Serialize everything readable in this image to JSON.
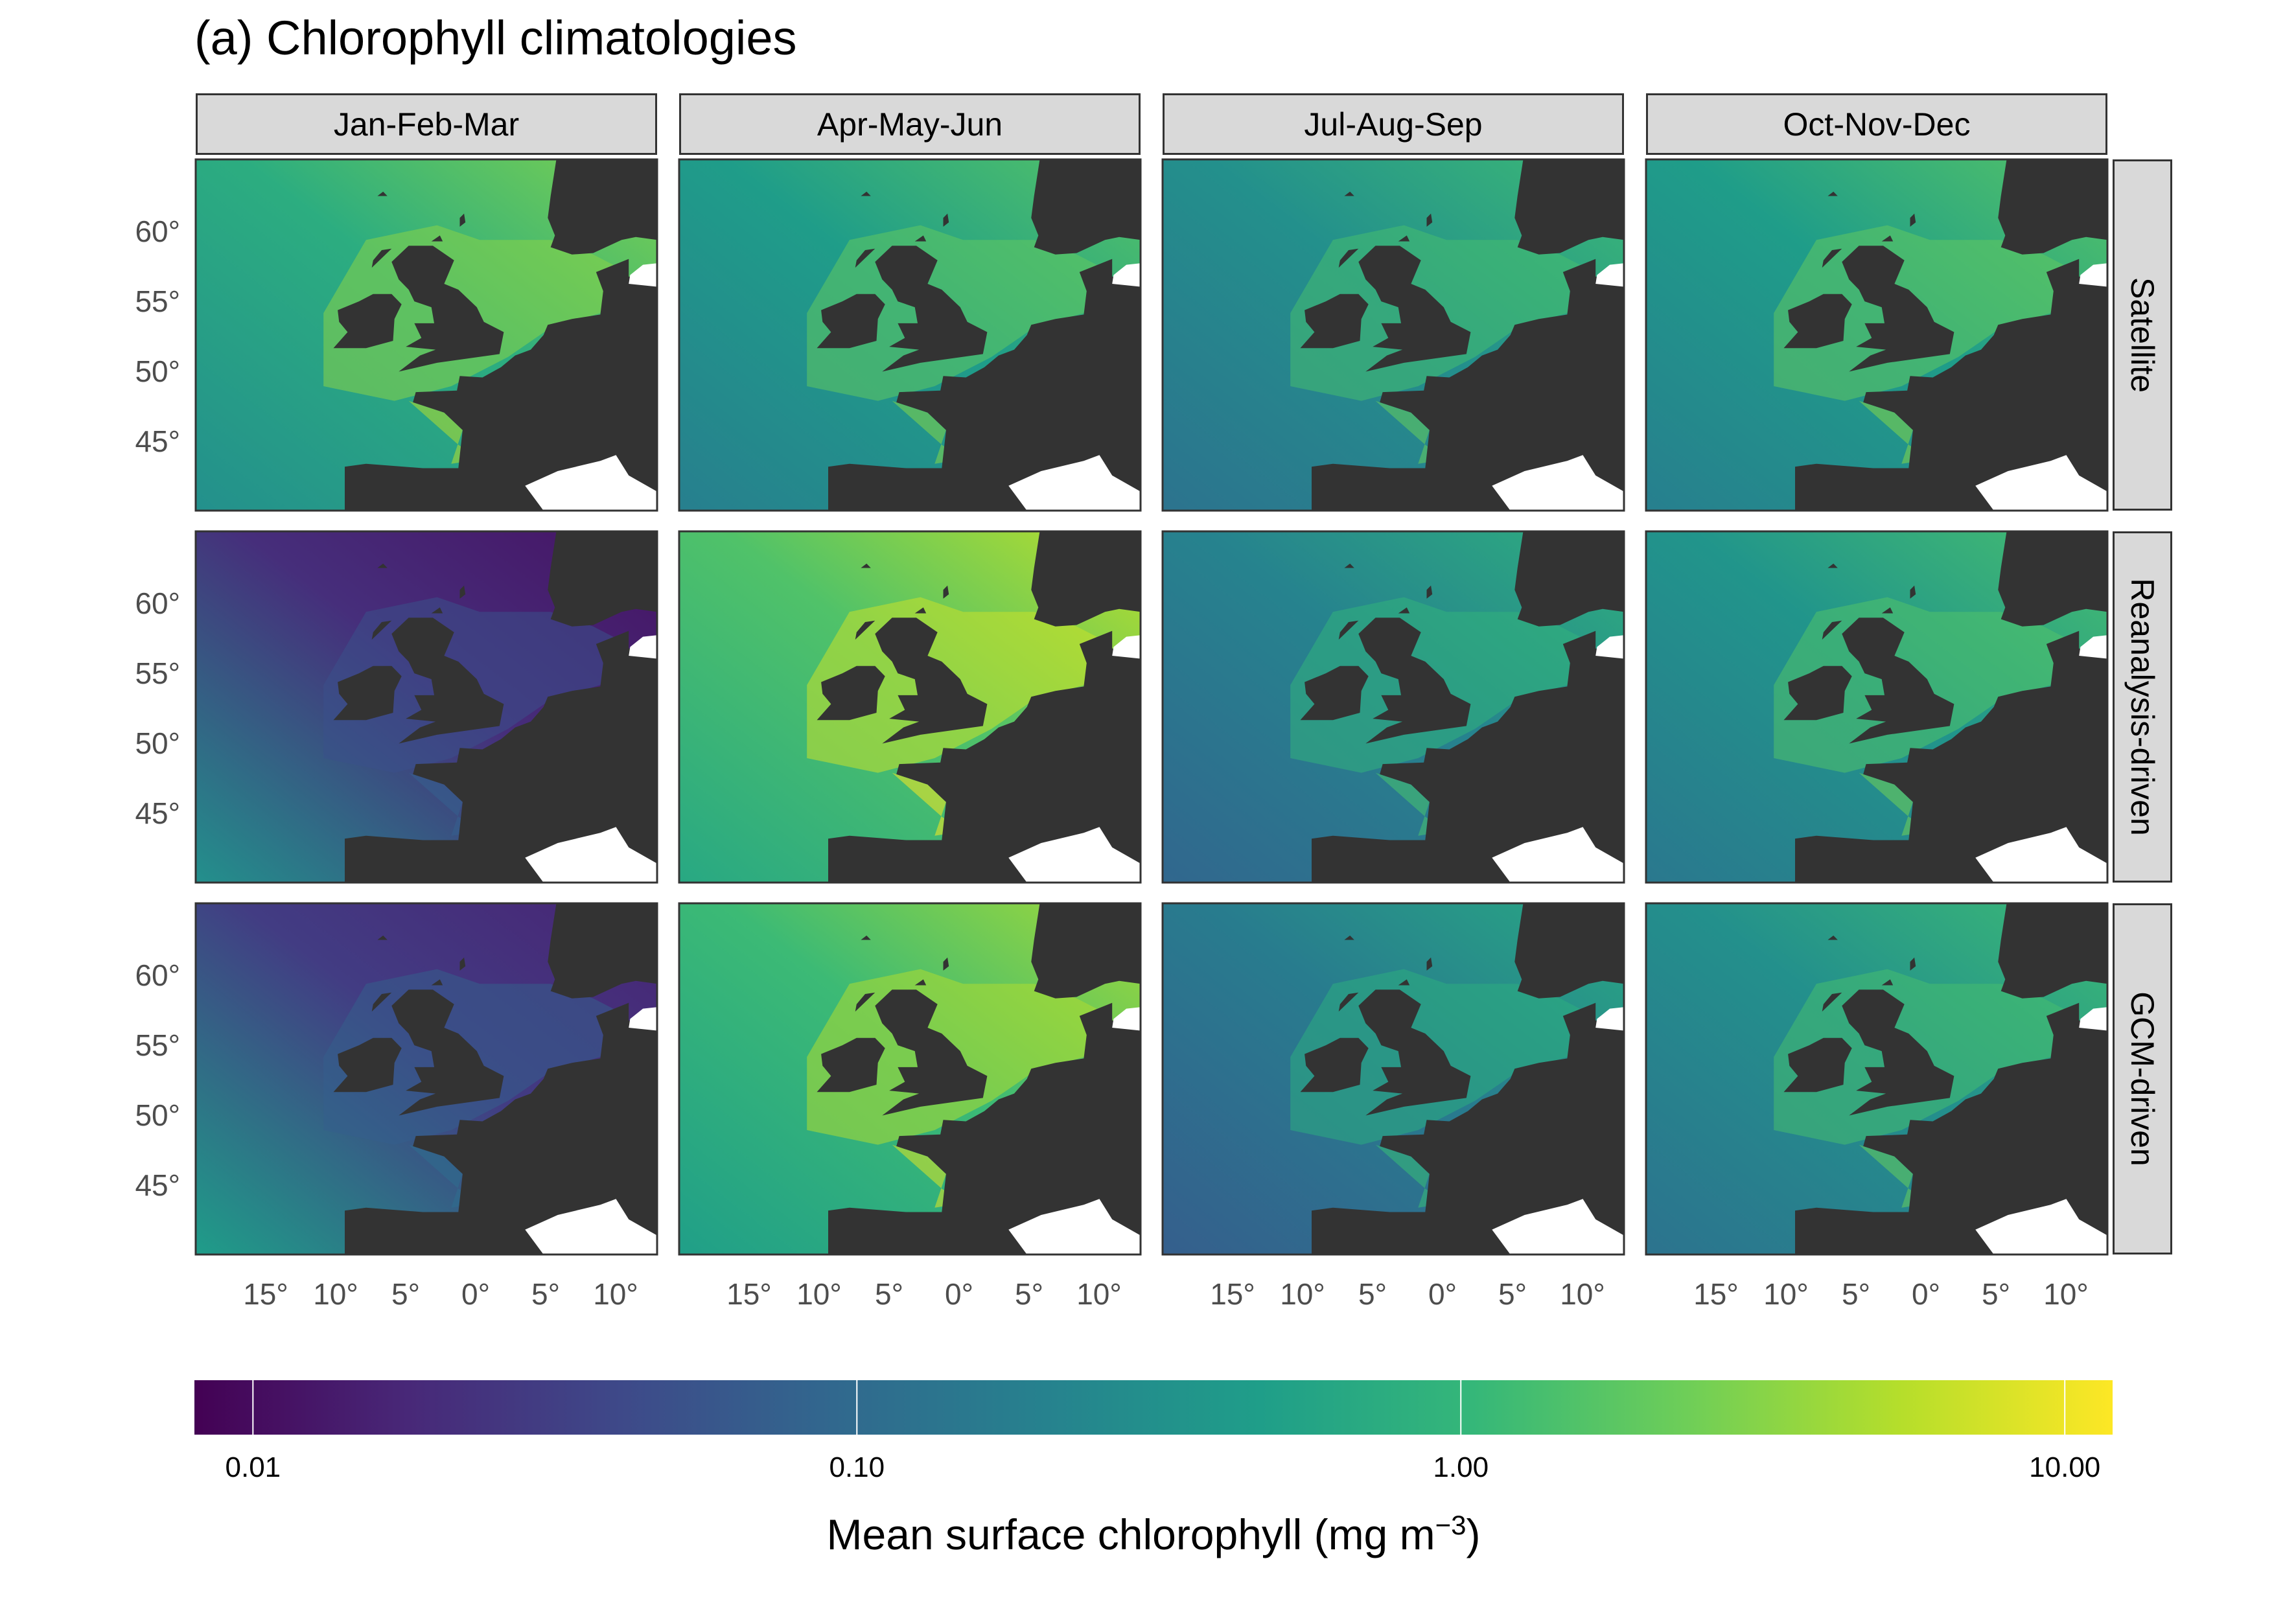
{
  "title": "(a) Chlorophyll climatologies",
  "columns": [
    "Jan-Feb-Mar",
    "Apr-May-Jun",
    "Jul-Aug-Sep",
    "Oct-Nov-Dec"
  ],
  "rows": [
    "Satellite",
    "Reanalysis-driven",
    "GCM-driven"
  ],
  "y_ticks": [
    "60°",
    "55°",
    "50°",
    "45°"
  ],
  "x_ticks": [
    "15°",
    "10°",
    "5°",
    "0°",
    "5°",
    "10°"
  ],
  "colorbar": {
    "scale": "log",
    "range": [
      0.008,
      12
    ],
    "ticks": [
      "0.01",
      "0.10",
      "1.00",
      "10.00"
    ],
    "tick_values": [
      0.01,
      0.1,
      1.0,
      10.0
    ],
    "title": "Mean surface chlorophyll (mg m",
    "title_superscript": "−3",
    "title_suffix": ")",
    "colormap": "viridis"
  },
  "colors": {
    "land": "#333333",
    "no_data": "#ffffff",
    "strip": "#d9d9d9",
    "viridis": [
      "#440154",
      "#482878",
      "#3e4989",
      "#31688e",
      "#26828e",
      "#1f9e89",
      "#35b779",
      "#6ece58",
      "#b5de2b",
      "#fde725"
    ]
  },
  "panel_tone": [
    [
      0.62,
      0.55,
      0.5,
      0.55
    ],
    [
      0.05,
      0.72,
      0.45,
      0.52
    ],
    [
      0.1,
      0.68,
      0.42,
      0.5
    ]
  ]
}
